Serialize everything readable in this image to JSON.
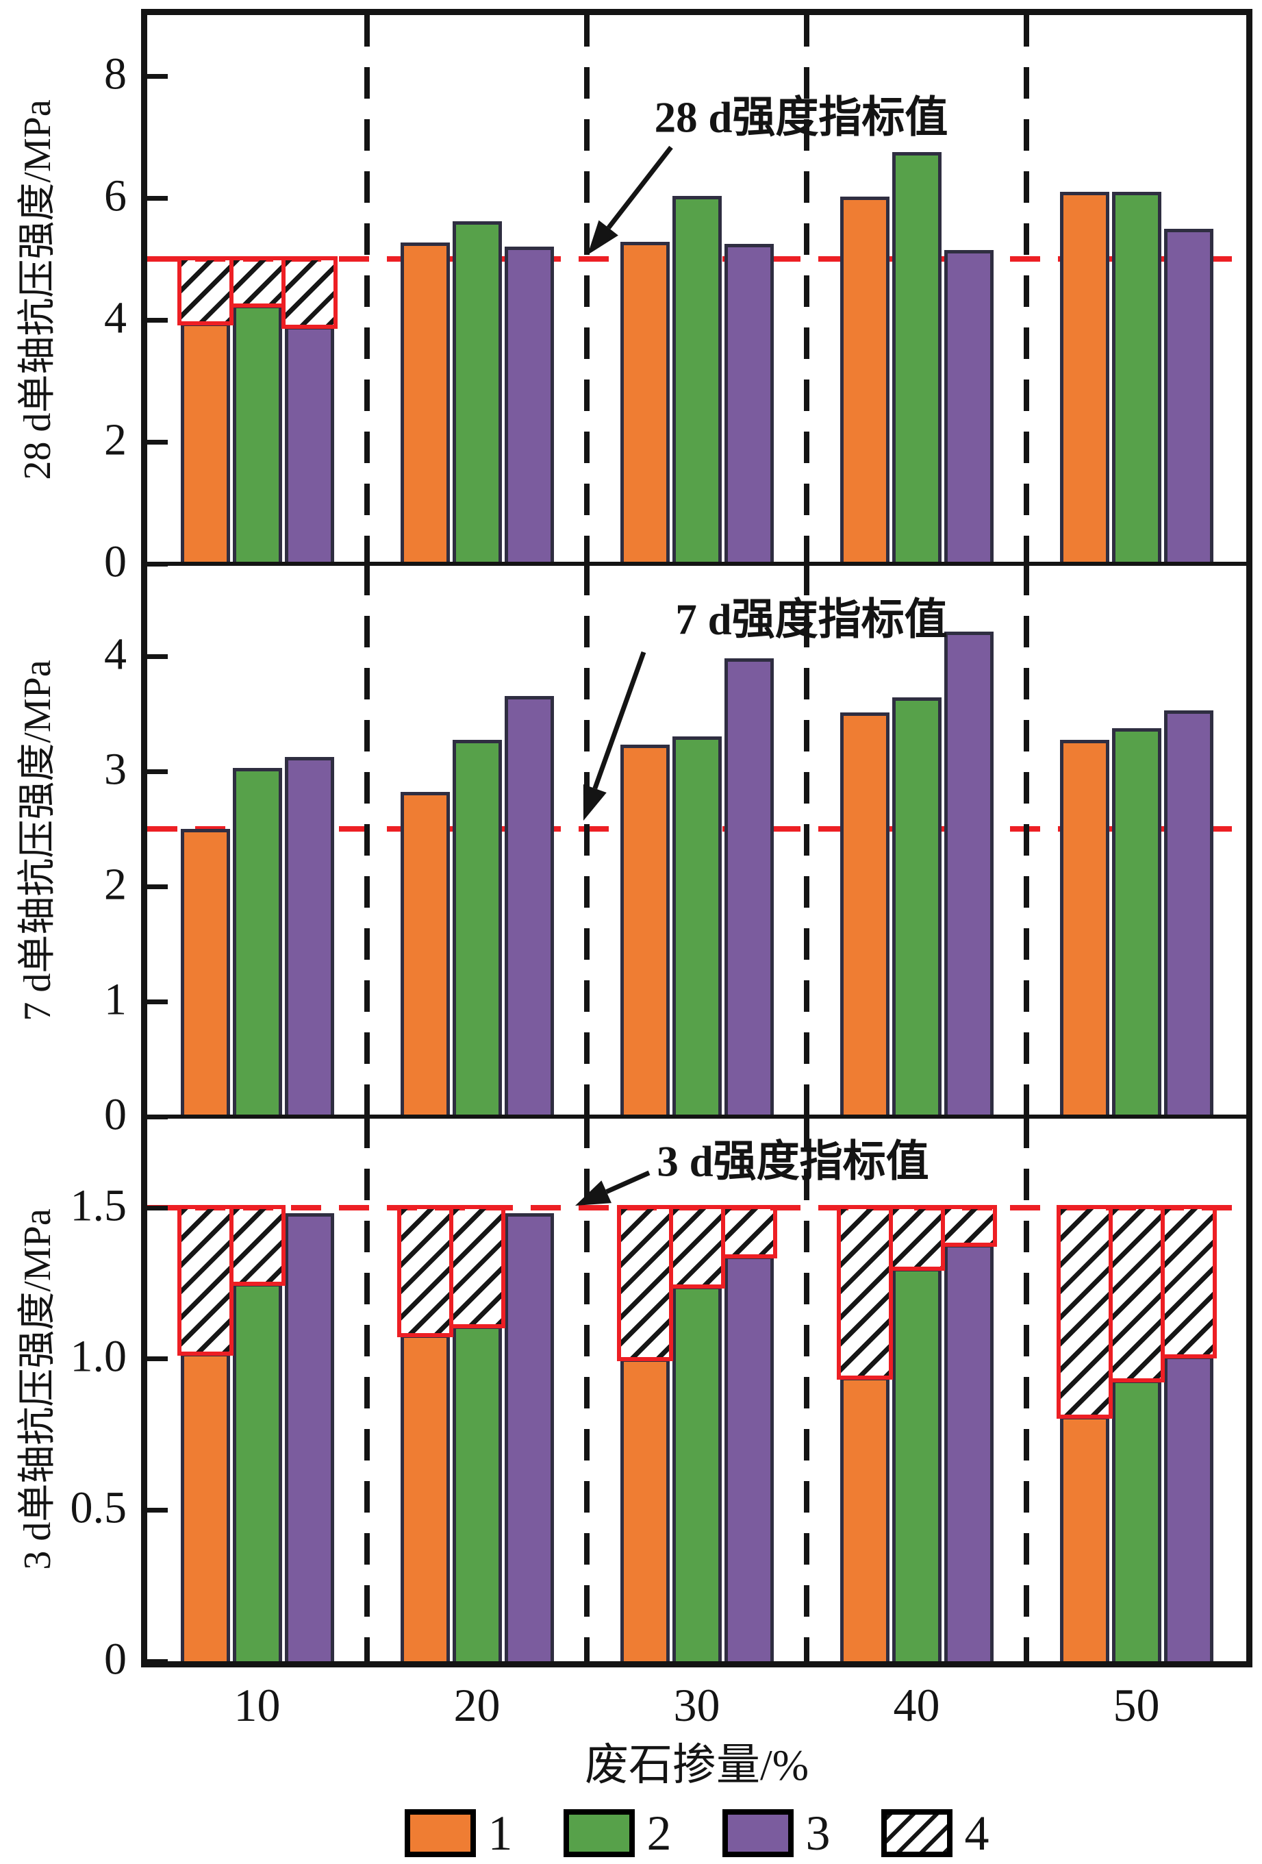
{
  "figure": {
    "xlabel": "废石掺量/%",
    "x_categories": [
      "10",
      "20",
      "30",
      "40",
      "50"
    ],
    "legend": [
      {
        "label": "1",
        "type": "solid",
        "color": "#EF7D33"
      },
      {
        "label": "2",
        "type": "solid",
        "color": "#57A14A"
      },
      {
        "label": "3",
        "type": "solid",
        "color": "#7B5C9E"
      },
      {
        "label": "4",
        "type": "hatch",
        "color": "#141414"
      }
    ],
    "colors": {
      "index_line_red": "#ED1F24",
      "axis_black": "#141414",
      "bar_outline": "#2F2E41",
      "background": "#FFFFFF"
    }
  },
  "chart_data": [
    {
      "type": "bar",
      "id": "28d",
      "ylabel": "28 d单轴抗压强度/MPa",
      "xlabel": "废石掺量/%",
      "ylim": [
        0,
        9
      ],
      "yticks": [
        {
          "value": 8,
          "label": "8"
        },
        {
          "value": 6,
          "label": "6"
        },
        {
          "value": 4,
          "label": "4"
        },
        {
          "value": 2,
          "label": "2"
        },
        {
          "value": 0,
          "label": "0"
        }
      ],
      "index_line": {
        "value": 5.0,
        "label": "28 d强度指标值"
      },
      "categories": [
        "10",
        "20",
        "30",
        "40",
        "50"
      ],
      "grid": false,
      "series": [
        {
          "name": "1",
          "values": [
            3.95,
            5.27,
            5.28,
            6.02,
            6.1
          ]
        },
        {
          "name": "2",
          "values": [
            4.25,
            5.62,
            6.03,
            6.75,
            6.1
          ]
        },
        {
          "name": "3",
          "values": [
            3.9,
            5.2,
            5.25,
            5.15,
            5.5
          ]
        }
      ],
      "hatch_to_index": [
        [
          true,
          true,
          true
        ],
        [
          false,
          false,
          false
        ],
        [
          false,
          false,
          false
        ],
        [
          false,
          false,
          false
        ],
        [
          false,
          false,
          false
        ]
      ]
    },
    {
      "type": "bar",
      "id": "7d",
      "ylabel": "7 d单轴抗压强度/MPa",
      "xlabel": "废石掺量/%",
      "ylim": [
        0,
        4.8
      ],
      "yticks": [
        {
          "value": 4,
          "label": "4"
        },
        {
          "value": 3,
          "label": "3"
        },
        {
          "value": 2,
          "label": "2"
        },
        {
          "value": 1,
          "label": "1"
        },
        {
          "value": 0,
          "label": "0"
        }
      ],
      "index_line": {
        "value": 2.5,
        "label": "7 d强度指标值"
      },
      "categories": [
        "10",
        "20",
        "30",
        "40",
        "50"
      ],
      "grid": false,
      "series": [
        {
          "name": "1",
          "values": [
            2.5,
            2.82,
            3.23,
            3.51,
            3.27
          ]
        },
        {
          "name": "2",
          "values": [
            3.03,
            3.27,
            3.3,
            3.64,
            3.37
          ]
        },
        {
          "name": "3",
          "values": [
            3.12,
            3.65,
            3.98,
            4.21,
            3.53
          ]
        }
      ],
      "hatch_to_index": [
        [
          false,
          false,
          false
        ],
        [
          false,
          false,
          false
        ],
        [
          false,
          false,
          false
        ],
        [
          false,
          false,
          false
        ],
        [
          false,
          false,
          false
        ]
      ]
    },
    {
      "type": "bar",
      "id": "3d",
      "ylabel": "3 d单轴抗压强度/MPa",
      "xlabel": "废石掺量/%",
      "ylim": [
        0,
        1.8
      ],
      "yticks": [
        {
          "value": 1.5,
          "label": "1.5"
        },
        {
          "value": 1.0,
          "label": "1.0"
        },
        {
          "value": 0.5,
          "label": "0.5"
        },
        {
          "value": 0,
          "label": "0"
        }
      ],
      "index_line": {
        "value": 1.5,
        "label": "3 d强度指标值"
      },
      "categories": [
        "10",
        "20",
        "30",
        "40",
        "50"
      ],
      "grid": false,
      "series": [
        {
          "name": "1",
          "values": [
            1.02,
            1.08,
            1.0,
            0.94,
            0.81
          ]
        },
        {
          "name": "2",
          "values": [
            1.25,
            1.11,
            1.24,
            1.3,
            0.93
          ]
        },
        {
          "name": "3",
          "values": [
            1.48,
            1.48,
            1.34,
            1.38,
            1.01
          ]
        }
      ],
      "hatch_to_index": [
        [
          true,
          true,
          false
        ],
        [
          true,
          true,
          false
        ],
        [
          true,
          true,
          true
        ],
        [
          true,
          true,
          true
        ],
        [
          true,
          true,
          true
        ]
      ]
    }
  ]
}
